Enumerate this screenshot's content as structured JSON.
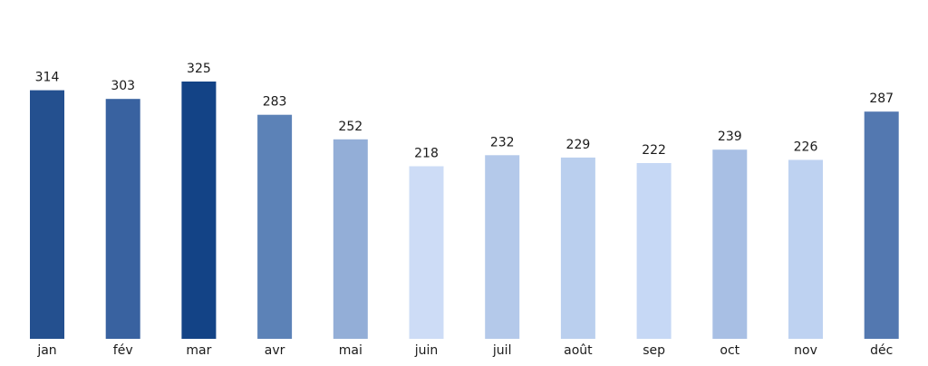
{
  "chart_data": {
    "type": "bar",
    "title": "",
    "xlabel": "",
    "ylabel": "",
    "categories": [
      "jan",
      "fév",
      "mar",
      "avr",
      "mai",
      "juin",
      "juil",
      "août",
      "sep",
      "oct",
      "nov",
      "déc"
    ],
    "values": [
      314,
      303,
      325,
      283,
      252,
      218,
      232,
      229,
      222,
      239,
      226,
      287
    ],
    "colors": [
      "#24508f",
      "#3962a0",
      "#134386",
      "#5c82b7",
      "#93aed7",
      "#cddcf6",
      "#b4c9ea",
      "#bacfee",
      "#c6d8f5",
      "#a8bfe4",
      "#bed2f1",
      "#5378b0"
    ],
    "ylim": [
      0,
      325
    ],
    "grid": false,
    "legend": "none",
    "data_labels": true
  }
}
